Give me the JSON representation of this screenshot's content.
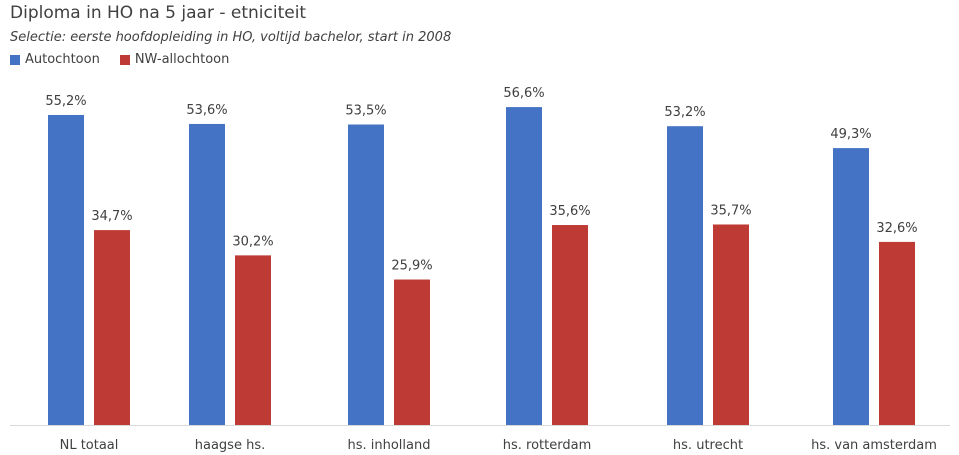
{
  "chart_data": {
    "type": "bar",
    "title": "Diploma in HO na 5 jaar - etniciteit",
    "subtitle": "Selectie: eerste hoofdopleiding in HO, voltijd bachelor, start in 2008",
    "categories": [
      "NL totaal",
      "haagse hs.",
      "hs. inholland",
      "hs. rotterdam",
      "hs. utrecht",
      "hs. van amsterdam"
    ],
    "series": [
      {
        "name": "Autochtoon",
        "color": "#4472C4",
        "values": [
          55.2,
          53.6,
          53.5,
          56.6,
          53.2,
          49.3
        ],
        "labels": [
          "55,2%",
          "53,6%",
          "53,5%",
          "56,6%",
          "53,2%",
          "49,3%"
        ]
      },
      {
        "name": "NW-allochtoon",
        "color": "#BE3A34",
        "values": [
          34.7,
          30.2,
          25.9,
          35.6,
          35.7,
          32.6
        ],
        "labels": [
          "34,7%",
          "30,2%",
          "25,9%",
          "35,6%",
          "35,7%",
          "32,6%"
        ]
      }
    ],
    "xlabel": "",
    "ylabel": "",
    "ylim": [
      0,
      60
    ],
    "grid": false,
    "legend_position": "top-left"
  }
}
